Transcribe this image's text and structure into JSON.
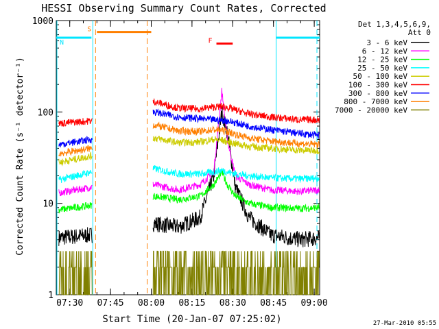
{
  "chart_data": {
    "type": "line",
    "title": "HESSI Observing Summary Count Rates, Corrected",
    "xlabel": "Start Time (20-Jan-07 07:25:02)",
    "ylabel": "Corrected Count Rate (s⁻¹ detector⁻¹)",
    "yscale": "log",
    "ylim": [
      1,
      1000
    ],
    "xlim": [
      "07:25:02",
      "09:02:00"
    ],
    "x_tick_labels": [
      "07:30",
      "07:45",
      "08:00",
      "08:15",
      "08:30",
      "08:45",
      "09:00"
    ],
    "x_tick_minutes": [
      4.97,
      19.97,
      34.97,
      49.97,
      64.97,
      79.97,
      94.97
    ],
    "y_tick_labels": [
      "1",
      "10",
      "100",
      "1000"
    ],
    "y_tick_values": [
      1,
      10,
      100,
      1000
    ],
    "grid": false,
    "legend_placement": "right",
    "legend_header": [
      "Det 1,3,4,5,6,9,",
      "Att 0"
    ],
    "footer_date": "27-Mar-2010 05:55",
    "flags": [
      {
        "label": "S",
        "color": "#ff7f00",
        "x_range": [
          "07:40:00",
          "08:00:00"
        ],
        "level": 750
      },
      {
        "label": "N",
        "color": "#00e6ff",
        "x_range": [
          "07:25:02",
          "07:38:00"
        ],
        "level": 650
      },
      {
        "label": "N",
        "color": "#00e6ff",
        "x_range": [
          "08:46:00",
          "09:02:00"
        ],
        "level": 650
      },
      {
        "label": "F",
        "color": "#ff0000",
        "x_range": [
          "08:24:00",
          "08:30:00"
        ],
        "level": 560
      }
    ],
    "night_boundaries": [
      "07:38:30",
      "08:46:00"
    ],
    "saa_boundaries": [
      "07:39:30",
      "07:58:30",
      "09:01:00"
    ],
    "series": [
      {
        "name": "3 - 6 keV",
        "color": "#000000",
        "x": [
          "07:26",
          "07:38",
          "08:01",
          "08:10",
          "08:18",
          "08:23",
          "08:26",
          "08:28",
          "08:31",
          "08:36",
          "08:44",
          "08:55",
          "09:02"
        ],
        "y": [
          4.2,
          4.5,
          6.0,
          5.5,
          7.0,
          20,
          100,
          60,
          15,
          7,
          4.5,
          4.0,
          4.2
        ]
      },
      {
        "name": "6 - 12 keV",
        "color": "#ff00ff",
        "x": [
          "07:26",
          "07:38",
          "08:01",
          "08:10",
          "08:18",
          "08:23",
          "08:26",
          "08:28",
          "08:31",
          "08:36",
          "08:44",
          "08:55",
          "09:02"
        ],
        "y": [
          13,
          15,
          16,
          14,
          16,
          22,
          170,
          50,
          20,
          16,
          14,
          13.5,
          14
        ]
      },
      {
        "name": "12 - 25 keV",
        "color": "#00ff00",
        "x": [
          "07:26",
          "07:38",
          "08:01",
          "08:10",
          "08:18",
          "08:23",
          "08:26",
          "08:28",
          "08:31",
          "08:36",
          "08:44",
          "08:55",
          "09:02"
        ],
        "y": [
          8.5,
          9.5,
          12,
          11,
          12,
          16,
          22,
          16,
          12,
          10,
          9,
          8.8,
          9
        ]
      },
      {
        "name": "25 - 50 keV",
        "color": "#00ffff",
        "x": [
          "07:26",
          "07:38",
          "08:01",
          "08:10",
          "08:18",
          "08:23",
          "08:26",
          "08:28",
          "08:31",
          "08:36",
          "08:44",
          "08:55",
          "09:02"
        ],
        "y": [
          18,
          22,
          24,
          21,
          21,
          22,
          23,
          22,
          21,
          20,
          19,
          18.5,
          19
        ]
      },
      {
        "name": "50 - 100 keV",
        "color": "#cccc00",
        "x": [
          "07:26",
          "07:38",
          "08:01",
          "08:10",
          "08:18",
          "08:23",
          "08:26",
          "08:28",
          "08:31",
          "08:36",
          "08:44",
          "08:55",
          "09:02"
        ],
        "y": [
          28,
          33,
          52,
          46,
          47,
          50,
          49,
          47,
          45,
          42,
          40,
          38,
          38
        ]
      },
      {
        "name": "100 - 300 keV",
        "color": "#ff0000",
        "x": [
          "07:26",
          "07:38",
          "08:01",
          "08:10",
          "08:18",
          "08:23",
          "08:26",
          "08:28",
          "08:31",
          "08:36",
          "08:44",
          "08:55",
          "09:02"
        ],
        "y": [
          75,
          80,
          130,
          110,
          108,
          113,
          115,
          112,
          105,
          95,
          88,
          82,
          82
        ]
      },
      {
        "name": "300 - 800 keV",
        "color": "#0000ff",
        "x": [
          "07:26",
          "07:38",
          "08:01",
          "08:10",
          "08:18",
          "08:23",
          "08:26",
          "08:28",
          "08:31",
          "08:36",
          "08:44",
          "08:55",
          "09:02"
        ],
        "y": [
          44,
          50,
          100,
          88,
          84,
          82,
          81,
          80,
          76,
          70,
          64,
          58,
          55
        ]
      },
      {
        "name": "800 - 7000 keV",
        "color": "#ff7f00",
        "x": [
          "07:26",
          "07:38",
          "08:01",
          "08:10",
          "08:18",
          "08:23",
          "08:26",
          "08:28",
          "08:31",
          "08:36",
          "08:44",
          "08:55",
          "09:02"
        ],
        "y": [
          35,
          40,
          72,
          62,
          61,
          64,
          63,
          61,
          57,
          52,
          48,
          45,
          44
        ]
      },
      {
        "name": "7000 - 20000 keV",
        "color": "#808000",
        "x": [
          "07:26",
          "07:38",
          "08:01",
          "08:10",
          "08:18",
          "08:23",
          "08:26",
          "08:28",
          "08:31",
          "08:36",
          "08:44",
          "08:55",
          "09:02"
        ],
        "y": [
          2.0,
          2.0,
          2.0,
          2.0,
          2.0,
          2.5,
          2.5,
          2.5,
          2.0,
          2.0,
          2.0,
          2.0,
          2.0
        ]
      }
    ]
  }
}
